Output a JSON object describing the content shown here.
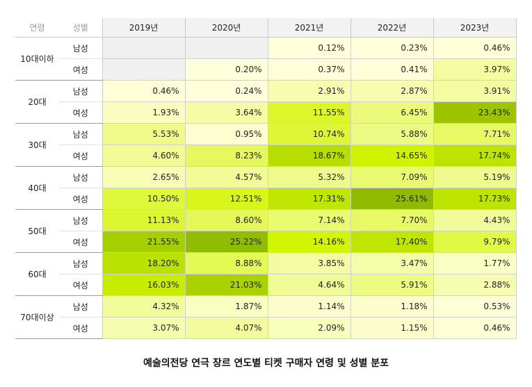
{
  "chart_data": {
    "type": "heatmap",
    "title": "예술의전당 연극 장르 연도별 티켓 구매자 연령 및 성별 분포",
    "row_header_age": "연령",
    "row_header_sex": "성별",
    "columns": [
      "2019년",
      "2020년",
      "2021년",
      "2022년",
      "2023년"
    ],
    "groups": [
      {
        "age": "10대이하",
        "rows": [
          {
            "sex": "남성",
            "values": [
              "",
              "",
              "0.12%",
              "0.23%",
              "0.46%"
            ]
          },
          {
            "sex": "여성",
            "values": [
              "",
              "0.20%",
              "0.37%",
              "0.41%",
              "3.97%"
            ]
          }
        ]
      },
      {
        "age": "20대",
        "rows": [
          {
            "sex": "남성",
            "values": [
              "0.46%",
              "0.24%",
              "2.91%",
              "2.87%",
              "3.91%"
            ]
          },
          {
            "sex": "여성",
            "values": [
              "1.93%",
              "3.64%",
              "11.55%",
              "6.45%",
              "23.43%"
            ]
          }
        ]
      },
      {
        "age": "30대",
        "rows": [
          {
            "sex": "남성",
            "values": [
              "5.53%",
              "0.95%",
              "10.74%",
              "5.88%",
              "7.71%"
            ]
          },
          {
            "sex": "여성",
            "values": [
              "4.60%",
              "8.23%",
              "18.67%",
              "14.65%",
              "17.74%"
            ]
          }
        ]
      },
      {
        "age": "40대",
        "rows": [
          {
            "sex": "남성",
            "values": [
              "2.65%",
              "4.57%",
              "5.32%",
              "7.09%",
              "5.19%"
            ]
          },
          {
            "sex": "여성",
            "values": [
              "10.50%",
              "12.51%",
              "17.31%",
              "25.61%",
              "17.73%"
            ]
          }
        ]
      },
      {
        "age": "50대",
        "rows": [
          {
            "sex": "남성",
            "values": [
              "11.13%",
              "8.60%",
              "7.14%",
              "7.70%",
              "4.43%"
            ]
          },
          {
            "sex": "여성",
            "values": [
              "21.55%",
              "25.22%",
              "14.16%",
              "17.40%",
              "9.79%"
            ]
          }
        ]
      },
      {
        "age": "60대",
        "rows": [
          {
            "sex": "남성",
            "values": [
              "18.20%",
              "8.88%",
              "3.85%",
              "3.47%",
              "1.77%"
            ]
          },
          {
            "sex": "여성",
            "values": [
              "16.03%",
              "21.03%",
              "4.64%",
              "5.91%",
              "2.88%"
            ]
          }
        ]
      },
      {
        "age": "70대이상",
        "rows": [
          {
            "sex": "남성",
            "values": [
              "4.32%",
              "1.87%",
              "1.14%",
              "1.18%",
              "0.53%"
            ]
          },
          {
            "sex": "여성",
            "values": [
              "3.07%",
              "4.07%",
              "2.09%",
              "1.15%",
              "0.46%"
            ]
          }
        ]
      }
    ],
    "color_scale": {
      "low": "#ffffde",
      "mid": "#d2f500",
      "high": "#8db800",
      "empty": "#f0f0f0"
    }
  }
}
